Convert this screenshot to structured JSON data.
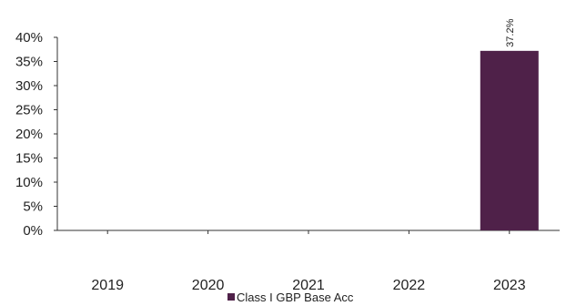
{
  "chart_data": {
    "type": "bar",
    "categories": [
      "2019",
      "2020",
      "2021",
      "2022",
      "2023"
    ],
    "series": [
      {
        "name": "Class I GBP Base  Acc",
        "values": [
          null,
          null,
          null,
          null,
          37.2
        ],
        "data_labels": [
          "",
          "",
          "",
          "",
          "37.2%"
        ],
        "color": "#4f2149"
      }
    ],
    "y_ticks": [
      "0%",
      "5%",
      "10%",
      "15%",
      "20%",
      "25%",
      "30%",
      "35%",
      "40%"
    ],
    "ylim": [
      0,
      40
    ],
    "y_tick_step": 5,
    "grid": false,
    "legend_position": "bottom-center",
    "title": "",
    "xlabel": "",
    "ylabel": ""
  }
}
